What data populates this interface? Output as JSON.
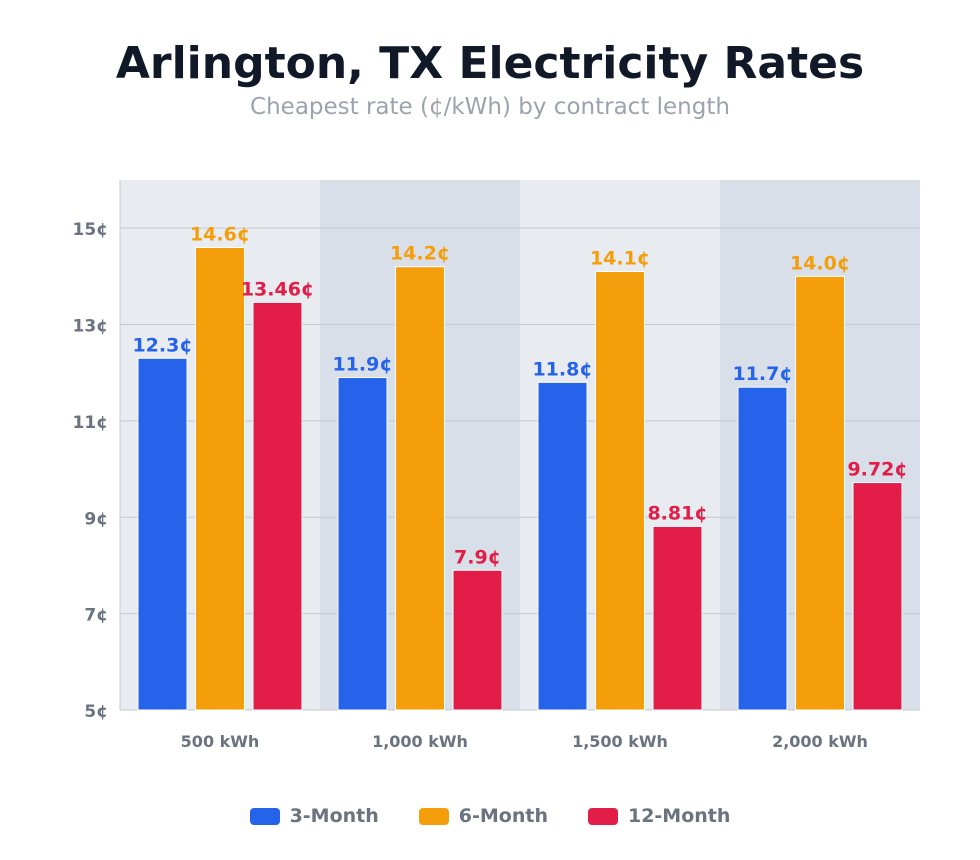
{
  "chart_data": {
    "type": "bar",
    "title": "Arlington, TX Electricity Rates",
    "subtitle": "Cheapest rate (¢/kWh) by contract length",
    "categories": [
      "500 kWh",
      "1,000 kWh",
      "1,500 kWh",
      "2,000 kWh"
    ],
    "series": [
      {
        "name": "3-Month",
        "color": "#2563eb",
        "values": [
          12.3,
          11.9,
          11.8,
          11.7
        ],
        "labels": [
          "12.3¢",
          "11.9¢",
          "11.8¢",
          "11.7¢"
        ]
      },
      {
        "name": "6-Month",
        "color": "#f59e0b",
        "values": [
          14.6,
          14.2,
          14.1,
          14.0
        ],
        "labels": [
          "14.6¢",
          "14.2¢",
          "14.1¢",
          "14.0¢"
        ]
      },
      {
        "name": "12-Month",
        "color": "#e11d48",
        "values": [
          13.46,
          7.9,
          8.81,
          9.72
        ],
        "labels": [
          "13.46¢",
          "7.9¢",
          "8.81¢",
          "9.72¢"
        ]
      }
    ],
    "ylim": [
      5,
      16
    ],
    "yticks": [
      5,
      7,
      9,
      11,
      13,
      15
    ],
    "ytick_labels": [
      "5¢",
      "7¢",
      "9¢",
      "11¢",
      "13¢",
      "15¢"
    ],
    "xlabel": "",
    "ylabel": "",
    "grid": true,
    "legend": "bottom-center"
  }
}
